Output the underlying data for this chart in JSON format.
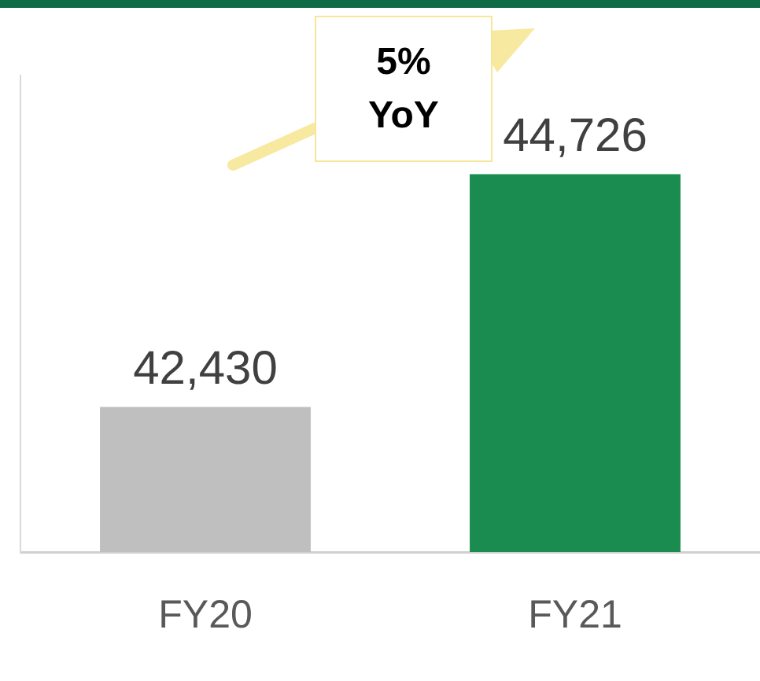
{
  "chart_data": {
    "type": "bar",
    "categories": [
      "FY20",
      "FY21"
    ],
    "values": [
      42430,
      44726
    ],
    "colors": [
      "#bfbfbf",
      "#1b8c50"
    ],
    "value_labels": [
      "42,430",
      "44,726"
    ],
    "ylim": [
      41000,
      45700
    ],
    "tick_labels": "x",
    "grid": false,
    "legend": false,
    "annotations": [
      "5% YoY"
    ]
  }
}
